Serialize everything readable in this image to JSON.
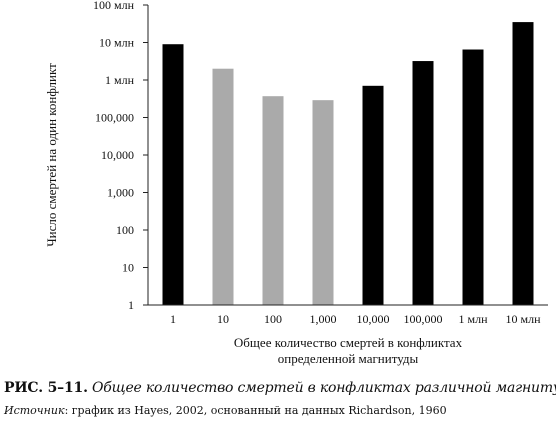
{
  "chart_data": {
    "type": "bar",
    "categories": [
      "1",
      "10",
      "100",
      "1,000",
      "10,000",
      "100,000",
      "1 млн",
      "10 млн"
    ],
    "values": [
      9000000,
      2000000,
      370000,
      290000,
      700000,
      3200000,
      6500000,
      35000000
    ],
    "bar_colors": [
      "#000000",
      "#aaaaaa",
      "#aaaaaa",
      "#aaaaaa",
      "#000000",
      "#000000",
      "#000000",
      "#000000"
    ],
    "yscale": "log",
    "ylim": [
      1,
      100000000
    ],
    "yticks": [
      {
        "value": 1,
        "label": "1"
      },
      {
        "value": 10,
        "label": "10"
      },
      {
        "value": 100,
        "label": "100"
      },
      {
        "value": 1000,
        "label": "1,000"
      },
      {
        "value": 10000,
        "label": "10,000"
      },
      {
        "value": 100000,
        "label": "100,000"
      },
      {
        "value": 1000000,
        "label": "1 млн"
      },
      {
        "value": 10000000,
        "label": "10 млн"
      },
      {
        "value": 100000000,
        "label": "100 млн"
      }
    ],
    "ylabel": "Число смертей на один конфликт",
    "xlabel_lines": [
      "Общее количество смертей в конфликтах",
      "определенной магнитуды"
    ],
    "grid": false
  },
  "caption": {
    "fig_number": "РИС. 5–11.",
    "title": "Общее количество смертей в конфликтах различной магнитуды"
  },
  "source": {
    "label": "Источник",
    "text": ": график из Hayes, 2002, основанный на данных Richardson, 1960"
  }
}
